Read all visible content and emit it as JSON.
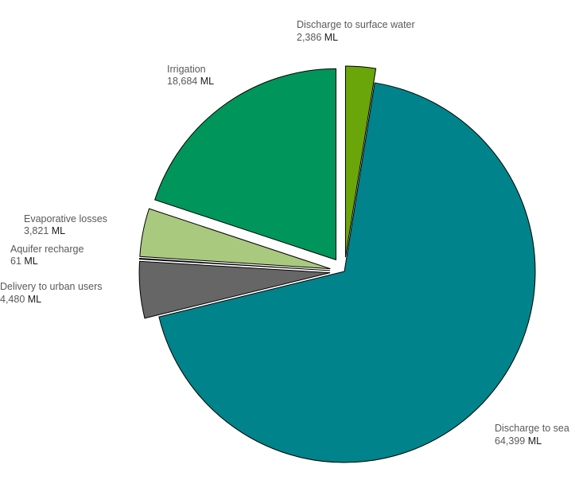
{
  "chart_data": {
    "type": "pie",
    "title": "",
    "unit": "ML",
    "start_angle_deg": 0,
    "direction": "clockwise",
    "slices": [
      {
        "name": "Discharge to surface water",
        "value": 2386,
        "value_label": "2,386",
        "color": "#6aa50a",
        "exploded": true
      },
      {
        "name": "Discharge to sea",
        "value": 64399,
        "value_label": "64,399",
        "color": "#00838a",
        "exploded": false
      },
      {
        "name": "Delivery to urban users",
        "value": 4480,
        "value_label": "4,480",
        "color": "#666666",
        "exploded": true
      },
      {
        "name": "Aquifer recharge",
        "value": 61,
        "value_label": "61",
        "color": "#3f6e5a",
        "exploded": true
      },
      {
        "name": "Evaporative losses",
        "value": 3821,
        "value_label": "3,821",
        "color": "#a9c97e",
        "exploded": true
      },
      {
        "name": "Irrigation",
        "value": 18684,
        "value_label": "18,684",
        "color": "#00955a",
        "exploded": true
      }
    ]
  }
}
